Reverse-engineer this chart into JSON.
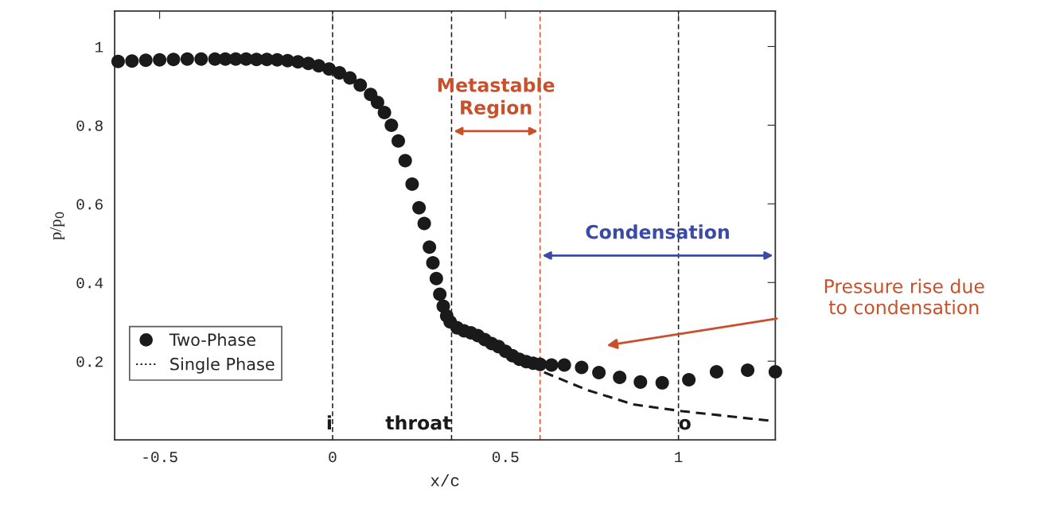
{
  "chart_data": {
    "type": "scatter",
    "xlabel": "x/c",
    "ylabel": "p/p$_{0}$",
    "xlim": [
      -0.63,
      1.28
    ],
    "ylim": [
      0,
      1.09
    ],
    "xticks": [
      -0.5,
      0,
      0.5,
      1
    ],
    "yticks": [
      0.2,
      0.4,
      0.6,
      0.8,
      1
    ],
    "grid": false,
    "legend": "bottom left",
    "series": [
      {
        "name": "Two-Phase",
        "marker": "circle",
        "color": "#1a1a1a",
        "x": [
          -0.62,
          -0.58,
          -0.54,
          -0.5,
          -0.46,
          -0.42,
          -0.38,
          -0.34,
          -0.31,
          -0.28,
          -0.25,
          -0.22,
          -0.19,
          -0.16,
          -0.13,
          -0.1,
          -0.07,
          -0.04,
          -0.01,
          0.02,
          0.05,
          0.08,
          0.11,
          0.13,
          0.15,
          0.17,
          0.19,
          0.21,
          0.23,
          0.25,
          0.265,
          0.28,
          0.29,
          0.3,
          0.31,
          0.32,
          0.33,
          0.34,
          0.36,
          0.38,
          0.4,
          0.42,
          0.44,
          0.46,
          0.48,
          0.5,
          0.52,
          0.54,
          0.56,
          0.58,
          0.6,
          0.633,
          0.67,
          0.72,
          0.77,
          0.83,
          0.89,
          0.953,
          1.03,
          1.11,
          1.2,
          1.28
        ],
        "values": [
          0.962,
          0.963,
          0.965,
          0.966,
          0.967,
          0.968,
          0.968,
          0.968,
          0.968,
          0.968,
          0.968,
          0.967,
          0.967,
          0.966,
          0.964,
          0.961,
          0.957,
          0.951,
          0.943,
          0.933,
          0.92,
          0.902,
          0.878,
          0.858,
          0.832,
          0.8,
          0.76,
          0.71,
          0.65,
          0.59,
          0.55,
          0.49,
          0.45,
          0.41,
          0.37,
          0.34,
          0.315,
          0.3,
          0.285,
          0.277,
          0.272,
          0.265,
          0.255,
          0.245,
          0.237,
          0.225,
          0.214,
          0.205,
          0.199,
          0.195,
          0.192,
          0.19,
          0.19,
          0.184,
          0.171,
          0.159,
          0.147,
          0.145,
          0.153,
          0.173,
          0.177,
          0.173
        ]
      },
      {
        "name": "Single Phase",
        "type": "line",
        "marker": "none",
        "line_style": "dashed",
        "color": "#1a1a1a",
        "x": [
          0.6,
          0.735,
          0.87,
          1.01,
          1.26
        ],
        "values": [
          0.176,
          0.127,
          0.09,
          0.073,
          0.049
        ]
      }
    ],
    "ref_lines": [
      {
        "axis": "x",
        "value": 0,
        "label": "i",
        "color": "#1a1a1a",
        "line_style": "dashed"
      },
      {
        "axis": "x",
        "value": 0.344,
        "label": "throat",
        "color": "#1a1a1a",
        "line_style": "dashed"
      },
      {
        "axis": "x",
        "value": 0.6,
        "color": "#e0502a",
        "line_style": "dashed"
      },
      {
        "axis": "x",
        "value": 1.0,
        "label": "o",
        "color": "#1a1a1a",
        "line_style": "dashed"
      }
    ],
    "annotations": [
      "Metastable\nRegion",
      "Condensation",
      "Pressure rise due\nto condensation"
    ]
  }
}
